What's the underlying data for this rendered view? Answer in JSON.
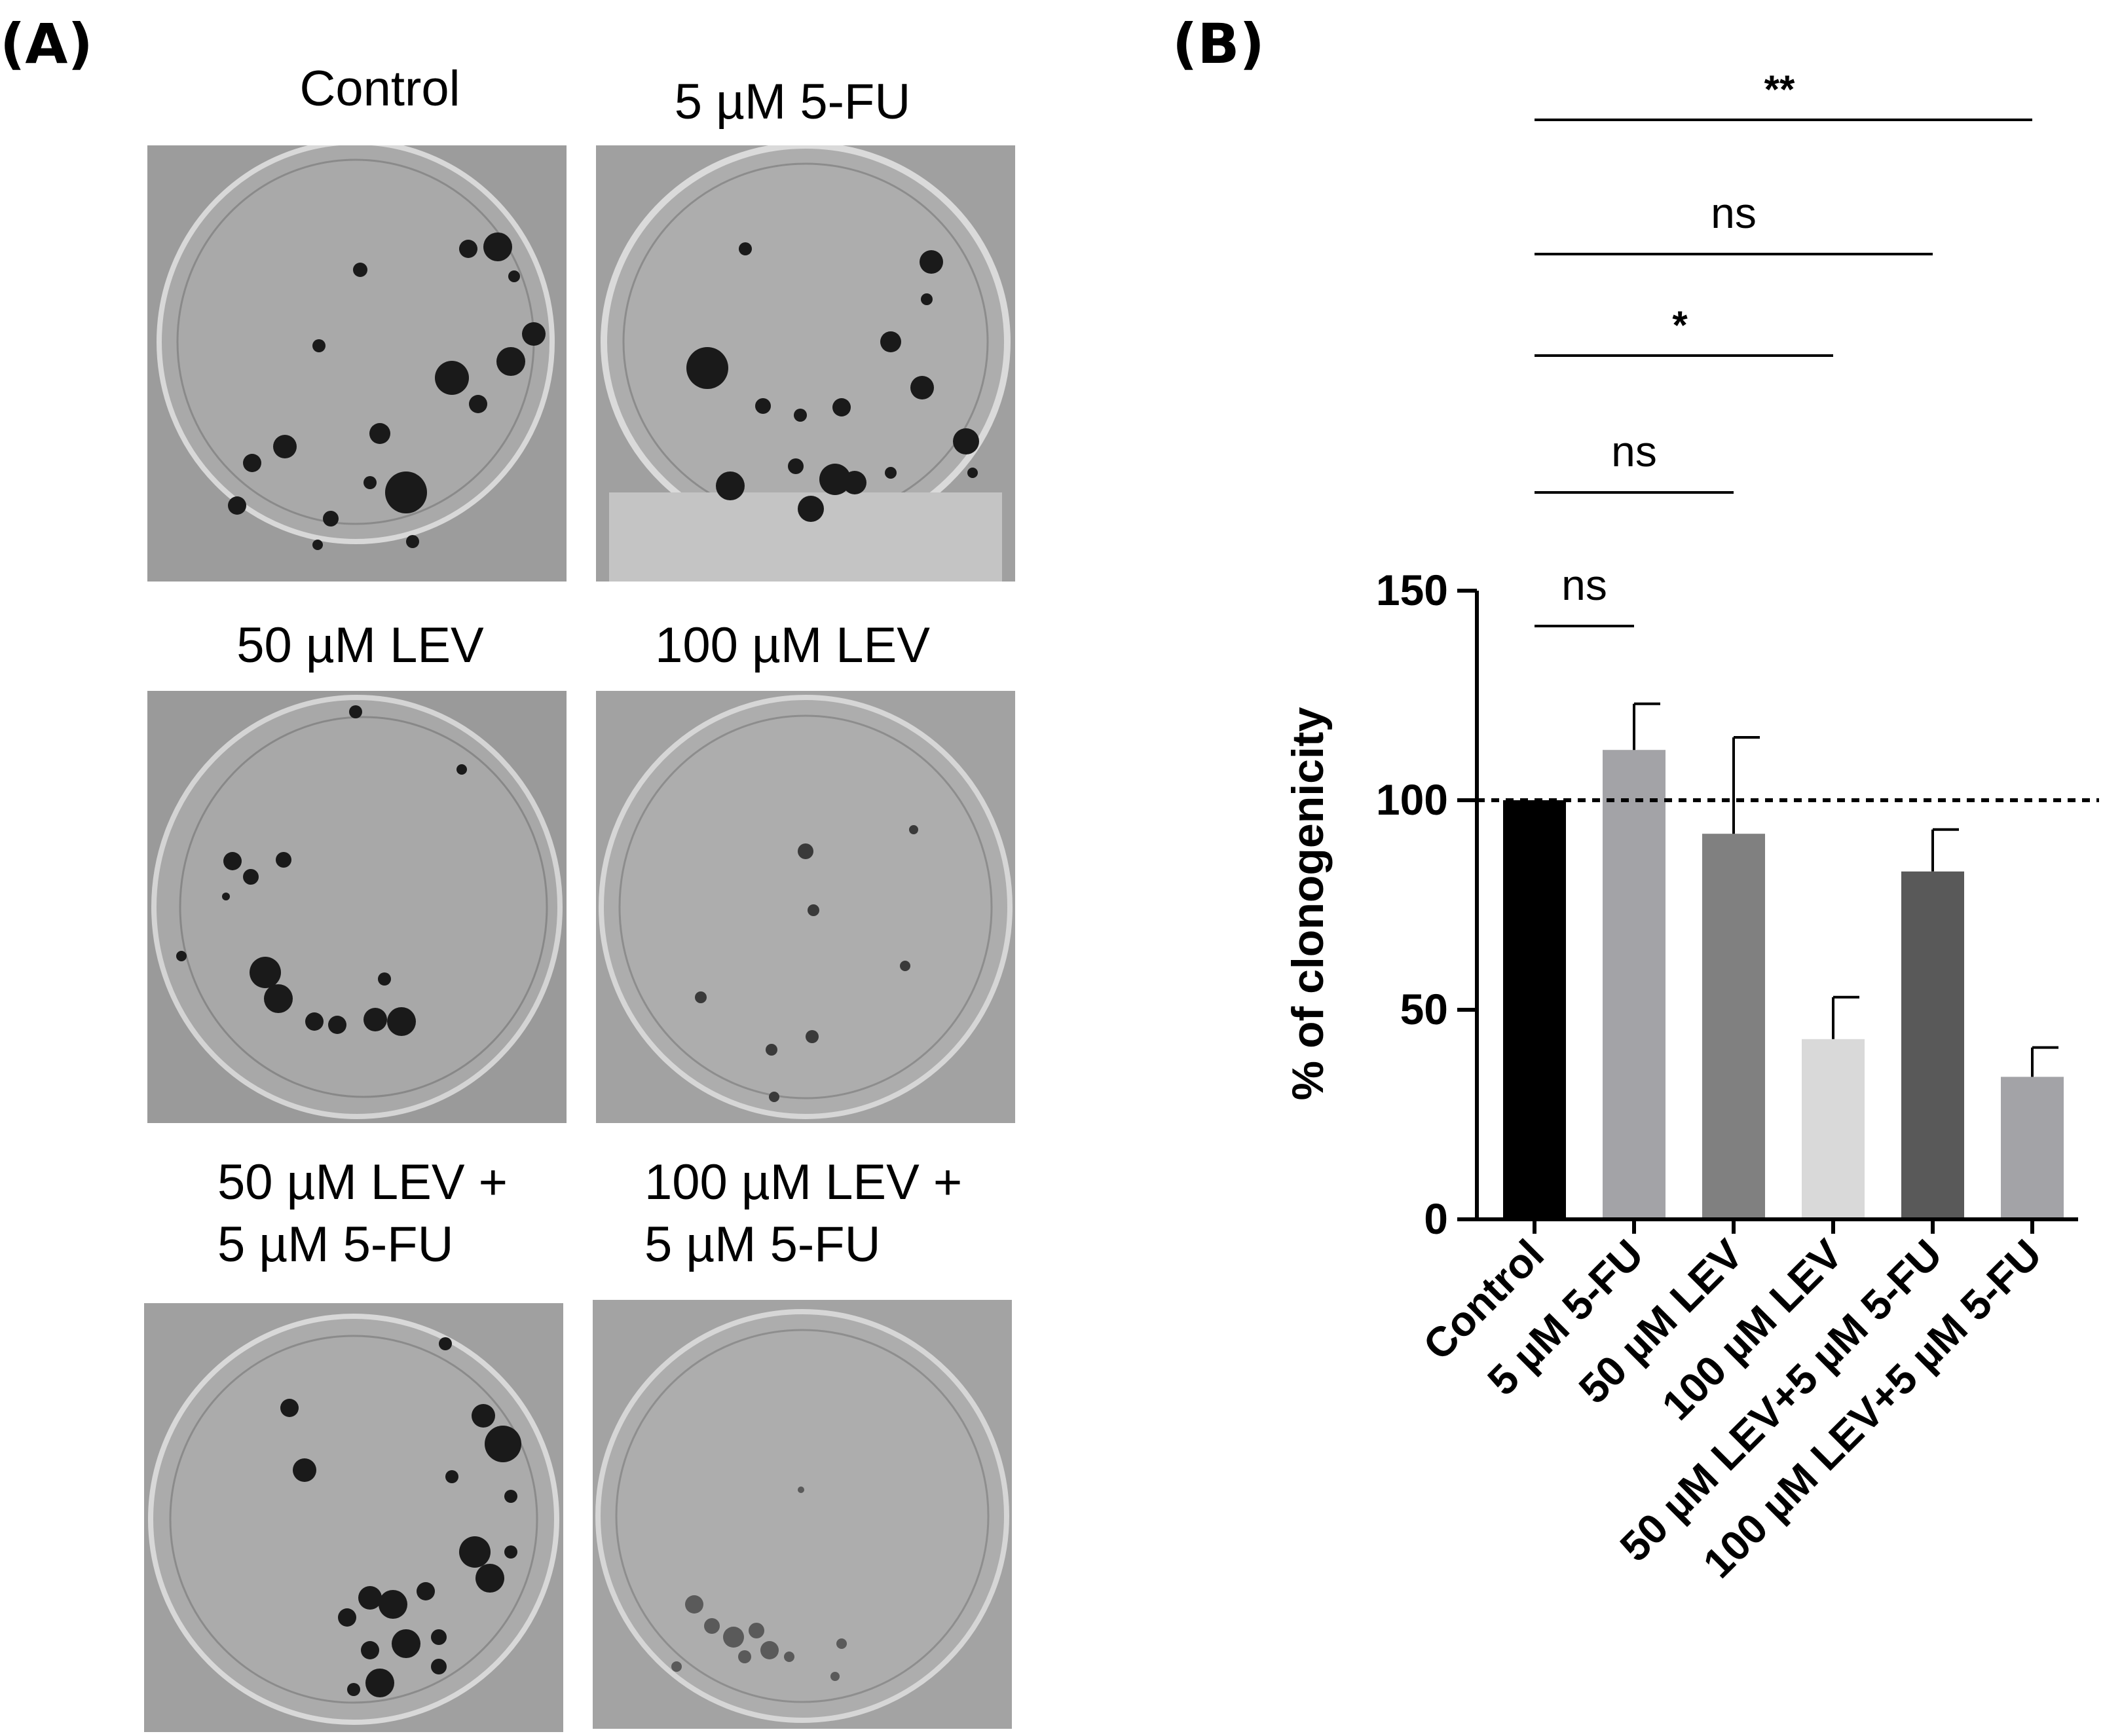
{
  "panel_a": {
    "label": "(A)",
    "captions": [
      "Control",
      "5 µM 5-FU",
      "50 µM LEV",
      "100 µM LEV",
      "50 µM LEV +\n5 µM 5-FU",
      "100 µM LEV +\n5 µM 5-FU"
    ]
  },
  "panel_b": {
    "label": "(B)"
  },
  "chart_data": {
    "type": "bar",
    "categories": [
      "Control",
      "5 µM 5-FU",
      "50 µM LEV",
      "100 µM LEV",
      "50 µM LEV+5 µM 5-FU",
      "100 µM LEV+5 µM 5-FU"
    ],
    "values": [
      100,
      112,
      92,
      43,
      83,
      34
    ],
    "errors": [
      0,
      11,
      23,
      10,
      10,
      7
    ],
    "colors": [
      "#000000",
      "#a3a3a7",
      "#808080",
      "#d9d9d9",
      "#595959",
      "#a3a3a7"
    ],
    "xlabel": "",
    "ylabel": "% of clonogenicity",
    "ylim": [
      0,
      150
    ],
    "yticks": [
      "0",
      "50",
      "100",
      "150"
    ],
    "reference_line": 100,
    "significance": [
      {
        "pair": [
          0,
          1
        ],
        "label": "ns"
      },
      {
        "pair": [
          0,
          2
        ],
        "label": "ns"
      },
      {
        "pair": [
          0,
          3
        ],
        "label": "*"
      },
      {
        "pair": [
          0,
          4
        ],
        "label": "ns"
      },
      {
        "pair": [
          0,
          5
        ],
        "label": "**"
      }
    ],
    "grid": false
  }
}
